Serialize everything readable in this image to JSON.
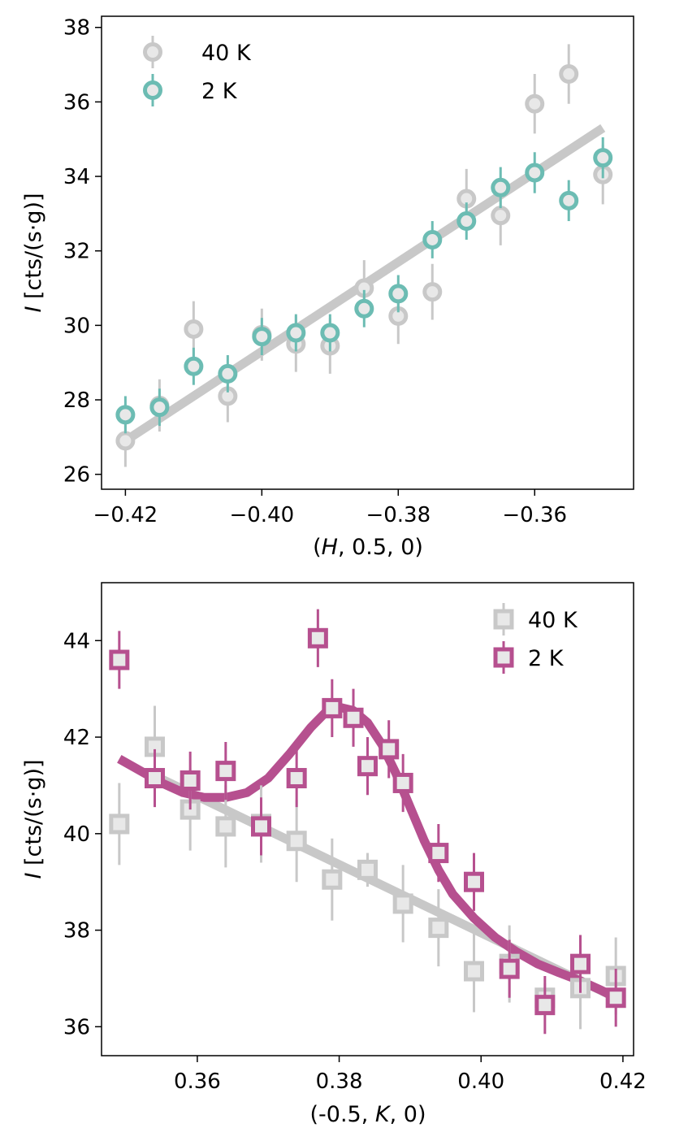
{
  "chart_data": [
    {
      "type": "scatter",
      "xlim": [
        -0.4235,
        -0.3455
      ],
      "ylim": [
        25.6,
        38.3
      ],
      "xticks": [
        -0.42,
        -0.4,
        -0.38,
        -0.36
      ],
      "xtick_labels": [
        "−0.42",
        "−0.40",
        "−0.38",
        "−0.36"
      ],
      "yticks": [
        26,
        28,
        30,
        32,
        34,
        36,
        38
      ],
      "ytick_labels": [
        "26",
        "28",
        "30",
        "32",
        "34",
        "36",
        "38"
      ],
      "xlabel": {
        "open": "(",
        "italic": "H",
        "rest": ", 0.5, 0)"
      },
      "ylabel": {
        "italic": "I",
        "rest": " [cts/(s·g)]"
      },
      "legend": {
        "position": "upper-left",
        "entries": [
          "40 K",
          "2 K"
        ]
      },
      "series": [
        {
          "name": "40 K",
          "marker": "circle",
          "color": "#c8c8c8",
          "points": [
            {
              "x": -0.42,
              "y": 26.9,
              "err": 0.7
            },
            {
              "x": -0.415,
              "y": 27.85,
              "err": 0.7
            },
            {
              "x": -0.41,
              "y": 29.9,
              "err": 0.75
            },
            {
              "x": -0.405,
              "y": 28.1,
              "err": 0.7
            },
            {
              "x": -0.4,
              "y": 29.75,
              "err": 0.7
            },
            {
              "x": -0.395,
              "y": 29.5,
              "err": 0.75
            },
            {
              "x": -0.39,
              "y": 29.45,
              "err": 0.75
            },
            {
              "x": -0.385,
              "y": 31.0,
              "err": 0.75
            },
            {
              "x": -0.38,
              "y": 30.25,
              "err": 0.75
            },
            {
              "x": -0.375,
              "y": 30.9,
              "err": 0.75
            },
            {
              "x": -0.37,
              "y": 33.4,
              "err": 0.8
            },
            {
              "x": -0.365,
              "y": 32.95,
              "err": 0.8
            },
            {
              "x": -0.36,
              "y": 35.95,
              "err": 0.8
            },
            {
              "x": -0.355,
              "y": 36.75,
              "err": 0.8
            },
            {
              "x": -0.35,
              "y": 34.05,
              "err": 0.8
            }
          ]
        },
        {
          "name": "2 K",
          "marker": "circle",
          "color": "#6cbcb3",
          "points": [
            {
              "x": -0.42,
              "y": 27.6,
              "err": 0.5
            },
            {
              "x": -0.415,
              "y": 27.8,
              "err": 0.5
            },
            {
              "x": -0.41,
              "y": 28.9,
              "err": 0.5
            },
            {
              "x": -0.405,
              "y": 28.7,
              "err": 0.5
            },
            {
              "x": -0.4,
              "y": 29.7,
              "err": 0.5
            },
            {
              "x": -0.395,
              "y": 29.8,
              "err": 0.5
            },
            {
              "x": -0.39,
              "y": 29.8,
              "err": 0.5
            },
            {
              "x": -0.385,
              "y": 30.45,
              "err": 0.5
            },
            {
              "x": -0.38,
              "y": 30.85,
              "err": 0.5
            },
            {
              "x": -0.375,
              "y": 32.3,
              "err": 0.5
            },
            {
              "x": -0.37,
              "y": 32.8,
              "err": 0.5
            },
            {
              "x": -0.365,
              "y": 33.7,
              "err": 0.55
            },
            {
              "x": -0.36,
              "y": 34.1,
              "err": 0.55
            },
            {
              "x": -0.355,
              "y": 33.35,
              "err": 0.55
            },
            {
              "x": -0.35,
              "y": 34.5,
              "err": 0.55
            }
          ]
        }
      ],
      "fits": [
        {
          "name": "40 K fit",
          "color": "#c8c8c8",
          "points": [
            [
              -0.42,
              26.9
            ],
            [
              -0.35,
              35.3
            ]
          ]
        }
      ]
    },
    {
      "type": "scatter",
      "xlim": [
        0.3465,
        0.4215
      ],
      "ylim": [
        35.4,
        45.2
      ],
      "xticks": [
        0.36,
        0.38,
        0.4,
        0.42
      ],
      "xtick_labels": [
        "0.36",
        "0.38",
        "0.40",
        "0.42"
      ],
      "yticks": [
        36,
        38,
        40,
        42,
        44
      ],
      "ytick_labels": [
        "36",
        "38",
        "40",
        "42",
        "44"
      ],
      "xlabel": {
        "open": "(-0.5, ",
        "italic": "K",
        "rest": ", 0)"
      },
      "ylabel": {
        "italic": "I",
        "rest": " [cts/(s·g)]"
      },
      "legend": {
        "position": "upper-right",
        "entries": [
          "40 K",
          "2 K"
        ]
      },
      "series": [
        {
          "name": "40 K",
          "marker": "square",
          "color": "#c8c8c8",
          "points": [
            {
              "x": 0.349,
              "y": 40.2,
              "err": 0.85
            },
            {
              "x": 0.354,
              "y": 41.8,
              "err": 0.85
            },
            {
              "x": 0.359,
              "y": 40.5,
              "err": 0.85
            },
            {
              "x": 0.364,
              "y": 40.15,
              "err": 0.85
            },
            {
              "x": 0.369,
              "y": 40.2,
              "err": 0.8
            },
            {
              "x": 0.374,
              "y": 39.85,
              "err": 0.85
            },
            {
              "x": 0.379,
              "y": 39.05,
              "err": 0.85
            },
            {
              "x": 0.384,
              "y": 39.25,
              "err": 0.35
            },
            {
              "x": 0.389,
              "y": 38.55,
              "err": 0.8
            },
            {
              "x": 0.394,
              "y": 38.05,
              "err": 0.8
            },
            {
              "x": 0.399,
              "y": 37.15,
              "err": 0.85
            },
            {
              "x": 0.404,
              "y": 37.3,
              "err": 0.8
            },
            {
              "x": 0.409,
              "y": 36.6,
              "err": 0.3
            },
            {
              "x": 0.414,
              "y": 36.8,
              "err": 0.85
            },
            {
              "x": 0.419,
              "y": 37.05,
              "err": 0.8
            }
          ]
        },
        {
          "name": "2 K",
          "marker": "square",
          "color": "#b6508f",
          "points": [
            {
              "x": 0.349,
              "y": 43.6,
              "err": 0.6
            },
            {
              "x": 0.354,
              "y": 41.15,
              "err": 0.6
            },
            {
              "x": 0.359,
              "y": 41.1,
              "err": 0.6
            },
            {
              "x": 0.364,
              "y": 41.3,
              "err": 0.6
            },
            {
              "x": 0.369,
              "y": 40.15,
              "err": 0.6
            },
            {
              "x": 0.374,
              "y": 41.15,
              "err": 0.6
            },
            {
              "x": 0.377,
              "y": 44.05,
              "err": 0.6
            },
            {
              "x": 0.379,
              "y": 42.6,
              "err": 0.6
            },
            {
              "x": 0.382,
              "y": 42.4,
              "err": 0.6
            },
            {
              "x": 0.384,
              "y": 41.4,
              "err": 0.6
            },
            {
              "x": 0.387,
              "y": 41.75,
              "err": 0.6
            },
            {
              "x": 0.389,
              "y": 41.05,
              "err": 0.6
            },
            {
              "x": 0.394,
              "y": 39.6,
              "err": 0.6
            },
            {
              "x": 0.399,
              "y": 39.0,
              "err": 0.6
            },
            {
              "x": 0.404,
              "y": 37.2,
              "err": 0.6
            },
            {
              "x": 0.409,
              "y": 36.45,
              "err": 0.6
            },
            {
              "x": 0.414,
              "y": 37.3,
              "err": 0.6
            },
            {
              "x": 0.419,
              "y": 36.6,
              "err": 0.6
            }
          ]
        }
      ],
      "fits": [
        {
          "name": "40 K fit",
          "color": "#c8c8c8",
          "points": [
            [
              0.354,
              41.2
            ],
            [
              0.419,
              36.6
            ]
          ]
        },
        {
          "name": "2 K fit",
          "color": "#b6508f",
          "points": [
            [
              0.349,
              41.55
            ],
            [
              0.352,
              41.3
            ],
            [
              0.355,
              41.05
            ],
            [
              0.358,
              40.85
            ],
            [
              0.361,
              40.75
            ],
            [
              0.364,
              40.75
            ],
            [
              0.367,
              40.85
            ],
            [
              0.37,
              41.15
            ],
            [
              0.373,
              41.65
            ],
            [
              0.376,
              42.2
            ],
            [
              0.378,
              42.5
            ],
            [
              0.38,
              42.62
            ],
            [
              0.382,
              42.55
            ],
            [
              0.384,
              42.3
            ],
            [
              0.386,
              41.85
            ],
            [
              0.388,
              41.25
            ],
            [
              0.39,
              40.55
            ],
            [
              0.392,
              39.85
            ],
            [
              0.394,
              39.25
            ],
            [
              0.396,
              38.75
            ],
            [
              0.399,
              38.25
            ],
            [
              0.402,
              37.85
            ],
            [
              0.405,
              37.55
            ],
            [
              0.408,
              37.3
            ],
            [
              0.411,
              37.12
            ],
            [
              0.414,
              36.95
            ],
            [
              0.417,
              36.75
            ],
            [
              0.419,
              36.6
            ]
          ]
        }
      ]
    }
  ]
}
